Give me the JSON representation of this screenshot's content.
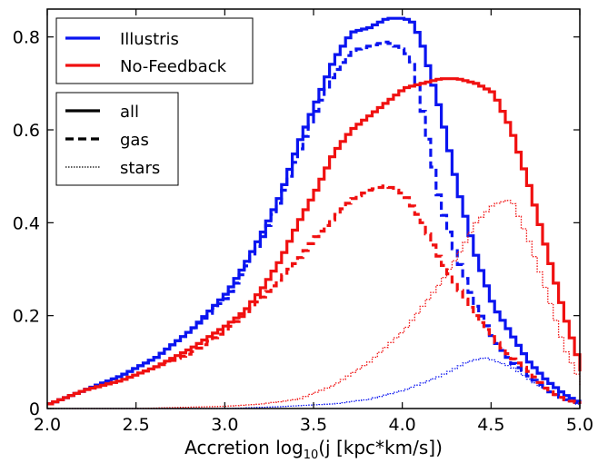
{
  "chart_data": {
    "type": "line",
    "title": "",
    "xlabel_main": "Accretion log",
    "xlabel_sub": "10",
    "xlabel_tail": "(j [kpc*km/s])",
    "ylabel": "",
    "xlim": [
      2.0,
      5.0
    ],
    "ylim": [
      0.0,
      0.86
    ],
    "x_ticks": [
      2.0,
      2.5,
      3.0,
      3.5,
      4.0,
      4.5,
      5.0
    ],
    "x_tick_labels": [
      "2.0",
      "2.5",
      "3.0",
      "3.5",
      "4.0",
      "4.5",
      "5.0"
    ],
    "y_ticks": [
      0.0,
      0.2,
      0.4,
      0.6,
      0.8
    ],
    "y_tick_labels": [
      "0",
      "0.2",
      "0.4",
      "0.6",
      "0.8"
    ],
    "grid": false,
    "legend_models": [
      {
        "name": "Illustris",
        "color": "#0a14f0"
      },
      {
        "name": "No-Feedback",
        "color": "#f01010"
      }
    ],
    "legend_components": [
      {
        "name": "all",
        "style": "solid"
      },
      {
        "name": "gas",
        "style": "dashed"
      },
      {
        "name": "stars",
        "style": "dotted"
      }
    ],
    "series": [
      {
        "model": "Illustris",
        "component": "all",
        "x": [
          2.0,
          2.2,
          2.4,
          2.6,
          2.8,
          3.0,
          3.1,
          3.2,
          3.3,
          3.4,
          3.5,
          3.6,
          3.7,
          3.8,
          3.9,
          4.0,
          4.05,
          4.1,
          4.2,
          4.3,
          4.4,
          4.5,
          4.6,
          4.7,
          4.8,
          4.9,
          5.0
        ],
        "y": [
          0.01,
          0.04,
          0.07,
          0.11,
          0.17,
          0.25,
          0.31,
          0.38,
          0.46,
          0.57,
          0.66,
          0.75,
          0.81,
          0.82,
          0.84,
          0.84,
          0.83,
          0.78,
          0.64,
          0.47,
          0.33,
          0.22,
          0.16,
          0.1,
          0.06,
          0.03,
          0.01
        ]
      },
      {
        "model": "Illustris",
        "component": "gas",
        "x": [
          2.0,
          2.2,
          2.4,
          2.6,
          2.8,
          3.0,
          3.1,
          3.2,
          3.3,
          3.4,
          3.5,
          3.6,
          3.7,
          3.8,
          3.9,
          4.0,
          4.05,
          4.1,
          4.2,
          4.3,
          4.4,
          4.5,
          4.6,
          4.7,
          4.8,
          4.9,
          5.0
        ],
        "y": [
          0.01,
          0.04,
          0.07,
          0.11,
          0.17,
          0.24,
          0.3,
          0.37,
          0.45,
          0.55,
          0.64,
          0.72,
          0.77,
          0.78,
          0.79,
          0.77,
          0.74,
          0.64,
          0.44,
          0.32,
          0.22,
          0.15,
          0.1,
          0.07,
          0.04,
          0.02,
          0.01
        ]
      },
      {
        "model": "Illustris",
        "component": "stars",
        "x": [
          2.0,
          2.5,
          3.0,
          3.3,
          3.6,
          3.8,
          4.0,
          4.2,
          4.35,
          4.45,
          4.6,
          4.75,
          4.9,
          5.0
        ],
        "y": [
          0.0,
          0.0,
          0.0,
          0.004,
          0.01,
          0.02,
          0.04,
          0.07,
          0.1,
          0.11,
          0.09,
          0.05,
          0.02,
          0.005
        ]
      },
      {
        "model": "No-Feedback",
        "component": "all",
        "x": [
          2.0,
          2.2,
          2.4,
          2.6,
          2.8,
          3.0,
          3.1,
          3.2,
          3.3,
          3.4,
          3.5,
          3.6,
          3.7,
          3.8,
          3.9,
          4.0,
          4.1,
          4.2,
          4.3,
          4.4,
          4.5,
          4.6,
          4.7,
          4.8,
          4.9,
          4.95,
          5.0
        ],
        "y": [
          0.01,
          0.04,
          0.06,
          0.09,
          0.13,
          0.18,
          0.21,
          0.26,
          0.32,
          0.4,
          0.47,
          0.55,
          0.6,
          0.63,
          0.66,
          0.69,
          0.7,
          0.71,
          0.71,
          0.7,
          0.68,
          0.6,
          0.48,
          0.34,
          0.2,
          0.14,
          0.08
        ]
      },
      {
        "model": "No-Feedback",
        "component": "gas",
        "x": [
          2.0,
          2.2,
          2.4,
          2.6,
          2.8,
          3.0,
          3.2,
          3.4,
          3.5,
          3.6,
          3.7,
          3.8,
          3.9,
          4.0,
          4.1,
          4.2,
          4.3,
          4.4,
          4.5,
          4.6,
          4.7,
          4.8,
          4.9,
          5.0
        ],
        "y": [
          0.01,
          0.04,
          0.06,
          0.09,
          0.12,
          0.17,
          0.24,
          0.32,
          0.37,
          0.41,
          0.45,
          0.47,
          0.48,
          0.46,
          0.4,
          0.32,
          0.26,
          0.2,
          0.15,
          0.11,
          0.08,
          0.04,
          0.02,
          0.01
        ]
      },
      {
        "model": "No-Feedback",
        "component": "stars",
        "x": [
          2.0,
          2.5,
          3.0,
          3.2,
          3.4,
          3.6,
          3.8,
          4.0,
          4.2,
          4.3,
          4.4,
          4.5,
          4.6,
          4.7,
          4.8,
          4.9,
          5.0
        ],
        "y": [
          0.0,
          0.0,
          0.005,
          0.01,
          0.02,
          0.05,
          0.1,
          0.17,
          0.27,
          0.33,
          0.4,
          0.44,
          0.45,
          0.36,
          0.25,
          0.13,
          0.05
        ]
      }
    ]
  }
}
